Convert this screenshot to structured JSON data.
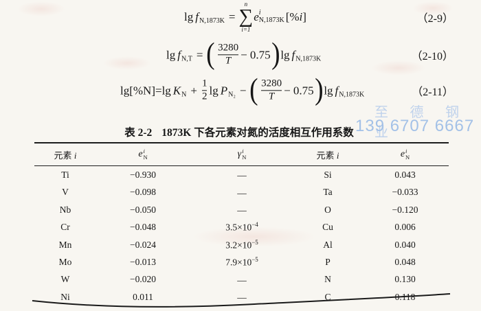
{
  "page": {
    "background": "#f8f6f1",
    "line_color": "#1c1c1c",
    "watermark": {
      "line1": "至 德 钢 业",
      "line2": "139 6707 6667",
      "color_line1": "#bfd2ec",
      "color_line2": "#a3c1e7"
    }
  },
  "equations": {
    "eq9": {
      "lg1": "lg",
      "f1": "f",
      "f1_sub": "N,1873K",
      "equals": "=",
      "sum_upper": "n",
      "sum_sign": "∑",
      "sum_lower": "i=1",
      "e_base": "e",
      "e_sup": "i",
      "e_sub": "N,1873K",
      "bracket_open": "[%",
      "bracket_i": "i",
      "bracket_close": "]",
      "number": "（2-9）"
    },
    "eq10": {
      "lg1": "lg",
      "f1": "f",
      "f1_sub": "N,T",
      "equals": "=",
      "paren_open": "(",
      "frac_num": "3280",
      "frac_den": "T",
      "minus_term": "− 0.75",
      "paren_close": ")",
      "lg2": "lg",
      "f2": "f",
      "f2_sub": "N,1873K",
      "number": "（2-10）"
    },
    "eq11": {
      "lhs": "lg[%N]=lg",
      "K": "K",
      "K_sub": "N",
      "plus": "+",
      "half_num": "1",
      "half_den": "2",
      "lg2": "lg",
      "P": "P",
      "P_sub": "N₂",
      "minus": "−",
      "paren_open": "(",
      "frac_num": "3280",
      "frac_den": "T",
      "minus_term": "− 0.75",
      "paren_close": ")",
      "lg3": "lg",
      "f": "f",
      "f_sub": "N,1873K",
      "number": "（2-11）"
    }
  },
  "table": {
    "title_label": "表 2-2",
    "title_text": "1873K 下各元素对氮的活度相互作用系数",
    "headers": {
      "col1_label": "元素 ",
      "col1_var": "i",
      "col2_base": "e",
      "col2_sup": "i",
      "col2_sub": "N",
      "col3_base": "γ",
      "col3_sup": "i",
      "col3_sub": "N",
      "col4_label": "元素 ",
      "col4_var": "i",
      "col5_base": "e",
      "col5_sup": "i",
      "col5_sub": "N"
    },
    "rows": [
      {
        "el1": "Ti",
        "e1": "−0.930",
        "g": "—",
        "g_sup": "",
        "el2": "Si",
        "e2": "0.043"
      },
      {
        "el1": "V",
        "e1": "−0.098",
        "g": "—",
        "g_sup": "",
        "el2": "Ta",
        "e2": "−0.033"
      },
      {
        "el1": "Nb",
        "e1": "−0.050",
        "g": "—",
        "g_sup": "",
        "el2": "O",
        "e2": "−0.120"
      },
      {
        "el1": "Cr",
        "e1": "−0.048",
        "g": "3.5×10",
        "g_sup": "−4",
        "el2": "Cu",
        "e2": "0.006"
      },
      {
        "el1": "Mn",
        "e1": "−0.024",
        "g": "3.2×10",
        "g_sup": "−5",
        "el2": "Al",
        "e2": "0.040"
      },
      {
        "el1": "Mo",
        "e1": "−0.013",
        "g": "7.9×10",
        "g_sup": "−5",
        "el2": "P",
        "e2": "0.048"
      },
      {
        "el1": "W",
        "e1": "−0.020",
        "g": "—",
        "g_sup": "",
        "el2": "N",
        "e2": "0.130"
      },
      {
        "el1": "Ni",
        "e1": "0.011",
        "g": "—",
        "g_sup": "",
        "el2": "C",
        "e2": "0.118"
      }
    ]
  }
}
